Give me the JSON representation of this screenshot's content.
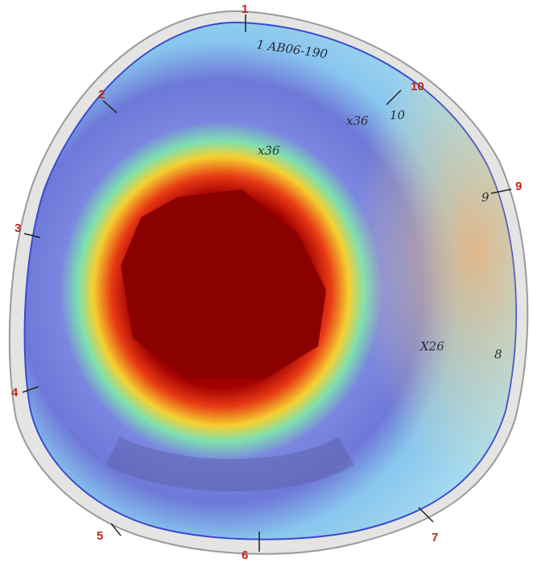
{
  "markers": [
    "1",
    "2",
    "3",
    "4",
    "5",
    "6",
    "7",
    "9",
    "10"
  ],
  "annotations": [
    "1 AB06-190",
    "x36",
    "x36",
    "X26",
    "10",
    "9",
    "8"
  ]
}
